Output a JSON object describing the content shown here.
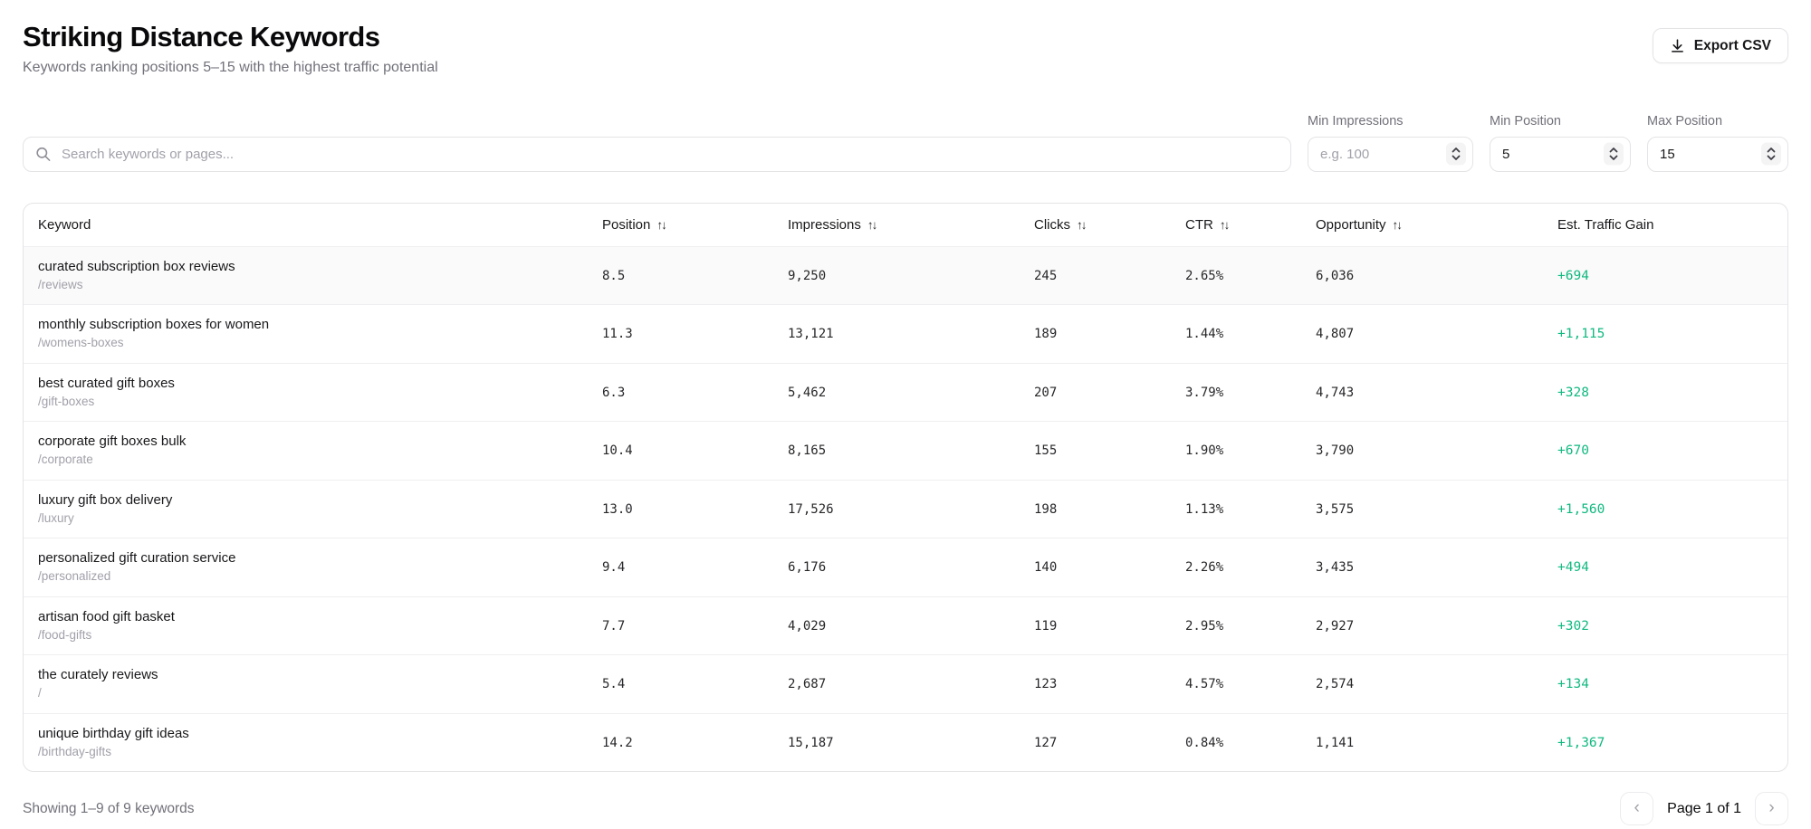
{
  "page": {
    "title": "Striking Distance Keywords",
    "subtitle": "Keywords ranking positions 5–15 with the highest traffic potential"
  },
  "toolbar": {
    "export_label": "Export CSV",
    "export_icon": "download-icon"
  },
  "filters": {
    "search": {
      "placeholder": "Search keywords or pages...",
      "value": "",
      "icon": "search-icon"
    },
    "min_impressions": {
      "label": "Min Impressions",
      "placeholder": "e.g. 100",
      "value": ""
    },
    "min_position": {
      "label": "Min Position",
      "placeholder": "",
      "value": "5"
    },
    "max_position": {
      "label": "Max Position",
      "placeholder": "",
      "value": "15"
    }
  },
  "table": {
    "sort_icon": "↑↓",
    "columns": [
      {
        "label": "Keyword",
        "sortable": false
      },
      {
        "label": "Position",
        "sortable": true
      },
      {
        "label": "Impressions",
        "sortable": true
      },
      {
        "label": "Clicks",
        "sortable": true
      },
      {
        "label": "CTR",
        "sortable": true
      },
      {
        "label": "Opportunity",
        "sortable": true
      },
      {
        "label": "Est. Traffic Gain",
        "sortable": false
      }
    ],
    "rows": [
      {
        "keyword": "curated subscription box reviews",
        "page": "/reviews",
        "position": "8.5",
        "impressions": "9,250",
        "clicks": "245",
        "ctr": "2.65%",
        "opportunity": "6,036",
        "gain": "+694",
        "highlighted": true
      },
      {
        "keyword": "monthly subscription boxes for women",
        "page": "/womens-boxes",
        "position": "11.3",
        "impressions": "13,121",
        "clicks": "189",
        "ctr": "1.44%",
        "opportunity": "4,807",
        "gain": "+1,115",
        "highlighted": false
      },
      {
        "keyword": "best curated gift boxes",
        "page": "/gift-boxes",
        "position": "6.3",
        "impressions": "5,462",
        "clicks": "207",
        "ctr": "3.79%",
        "opportunity": "4,743",
        "gain": "+328",
        "highlighted": false
      },
      {
        "keyword": "corporate gift boxes bulk",
        "page": "/corporate",
        "position": "10.4",
        "impressions": "8,165",
        "clicks": "155",
        "ctr": "1.90%",
        "opportunity": "3,790",
        "gain": "+670",
        "highlighted": false
      },
      {
        "keyword": "luxury gift box delivery",
        "page": "/luxury",
        "position": "13.0",
        "impressions": "17,526",
        "clicks": "198",
        "ctr": "1.13%",
        "opportunity": "3,575",
        "gain": "+1,560",
        "highlighted": false
      },
      {
        "keyword": "personalized gift curation service",
        "page": "/personalized",
        "position": "9.4",
        "impressions": "6,176",
        "clicks": "140",
        "ctr": "2.26%",
        "opportunity": "3,435",
        "gain": "+494",
        "highlighted": false
      },
      {
        "keyword": "artisan food gift basket",
        "page": "/food-gifts",
        "position": "7.7",
        "impressions": "4,029",
        "clicks": "119",
        "ctr": "2.95%",
        "opportunity": "2,927",
        "gain": "+302",
        "highlighted": false
      },
      {
        "keyword": "the curately reviews",
        "page": "/",
        "position": "5.4",
        "impressions": "2,687",
        "clicks": "123",
        "ctr": "4.57%",
        "opportunity": "2,574",
        "gain": "+134",
        "highlighted": false
      },
      {
        "keyword": "unique birthday gift ideas",
        "page": "/birthday-gifts",
        "position": "14.2",
        "impressions": "15,187",
        "clicks": "127",
        "ctr": "0.84%",
        "opportunity": "1,141",
        "gain": "+1,367",
        "highlighted": false
      }
    ]
  },
  "footer": {
    "summary": "Showing 1–9 of 9 keywords",
    "page_label": "Page 1 of 1",
    "prev_icon": "‹",
    "next_icon": "›"
  },
  "colors": {
    "accent_green": "#10b981"
  }
}
